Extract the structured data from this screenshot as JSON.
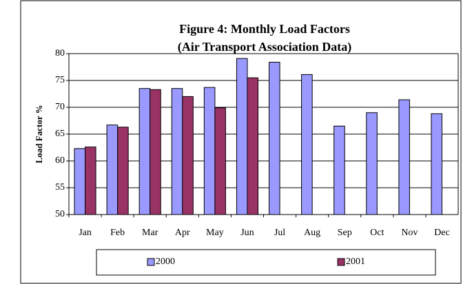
{
  "chart_data": {
    "type": "bar",
    "title": [
      "Figure 4:  Monthly Load Factors",
      "(Air Transport Association Data)"
    ],
    "y_label": "Load Factor %",
    "categories": [
      "Jan",
      "Feb",
      "Mar",
      "Apr",
      "May",
      "Jun",
      "Jul",
      "Aug",
      "Sep",
      "Oct",
      "Nov",
      "Dec"
    ],
    "series": [
      {
        "name": "2000",
        "color": "#9999ff",
        "values": [
          62.3,
          66.7,
          73.5,
          73.5,
          73.7,
          79.1,
          78.4,
          76.1,
          66.5,
          69.0,
          71.4,
          68.8
        ]
      },
      {
        "name": "2001",
        "color": "#993366",
        "values": [
          62.6,
          66.3,
          73.3,
          72.0,
          69.9,
          75.5,
          null,
          null,
          null,
          null,
          null,
          null
        ]
      }
    ],
    "ylim": [
      50,
      80
    ],
    "yticks": [
      50,
      55,
      60,
      65,
      70,
      75,
      80
    ],
    "grid": true,
    "legend": "bottom"
  }
}
